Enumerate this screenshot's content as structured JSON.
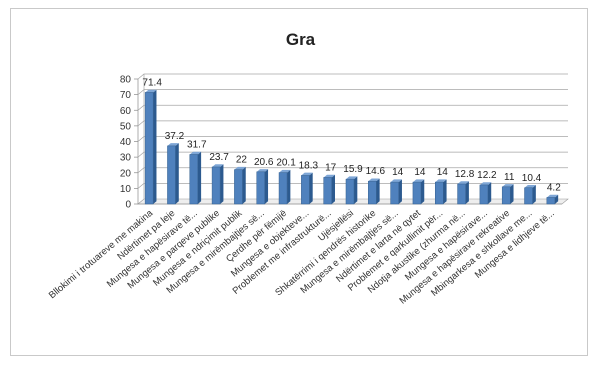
{
  "chart_data": {
    "type": "bar",
    "title": "Gra",
    "xlabel": "",
    "ylabel": "",
    "ylim": [
      0,
      80
    ],
    "yticks": [
      0,
      10,
      20,
      30,
      40,
      50,
      60,
      70,
      80
    ],
    "grid": true,
    "legend": "none",
    "bar_color": "#4f81bd",
    "categories": [
      "Bllokimi i trotuareve me makina",
      "Ndërtimet pa leje",
      "Mungesa e hapësirave të...",
      "Mungesa e parqeve publike",
      "Mungesa e ndriçimit publik",
      "Mungesa e mirëmbajtjes së...",
      "Çerdhe për fëmijë",
      "Mungesa e objekteve...",
      "Problemet me infrastrukturë...",
      "Ujësjellësi",
      "Shkatërrimi i qendrës historike",
      "Mungesa e mirëmbajtjes së...",
      "Ndërtimet e larta në qytet",
      "Problemet e qarkullimit për...",
      "Ndotja akustike (zhurma në...",
      "Mungesa e hapësirave...",
      "Mungesa e hapësirave rekreative",
      "Mbingarkesa e shkollave me...",
      "Mungesa e lidhjeve të..."
    ],
    "values": [
      71.4,
      37.2,
      31.7,
      23.7,
      22,
      20.6,
      20.1,
      18.3,
      17,
      15.9,
      14.6,
      14,
      14,
      14,
      12.8,
      12.2,
      11,
      10.4,
      4.2
    ],
    "data_labels": [
      "71.4",
      "37.2",
      "31.7",
      "23.7",
      "22",
      "20.6",
      "20.1",
      "18.3",
      "17",
      "15.9",
      "14.6",
      "14",
      "14",
      "14",
      "12.8",
      "12.2",
      "11",
      "10.4",
      "4.2"
    ]
  }
}
